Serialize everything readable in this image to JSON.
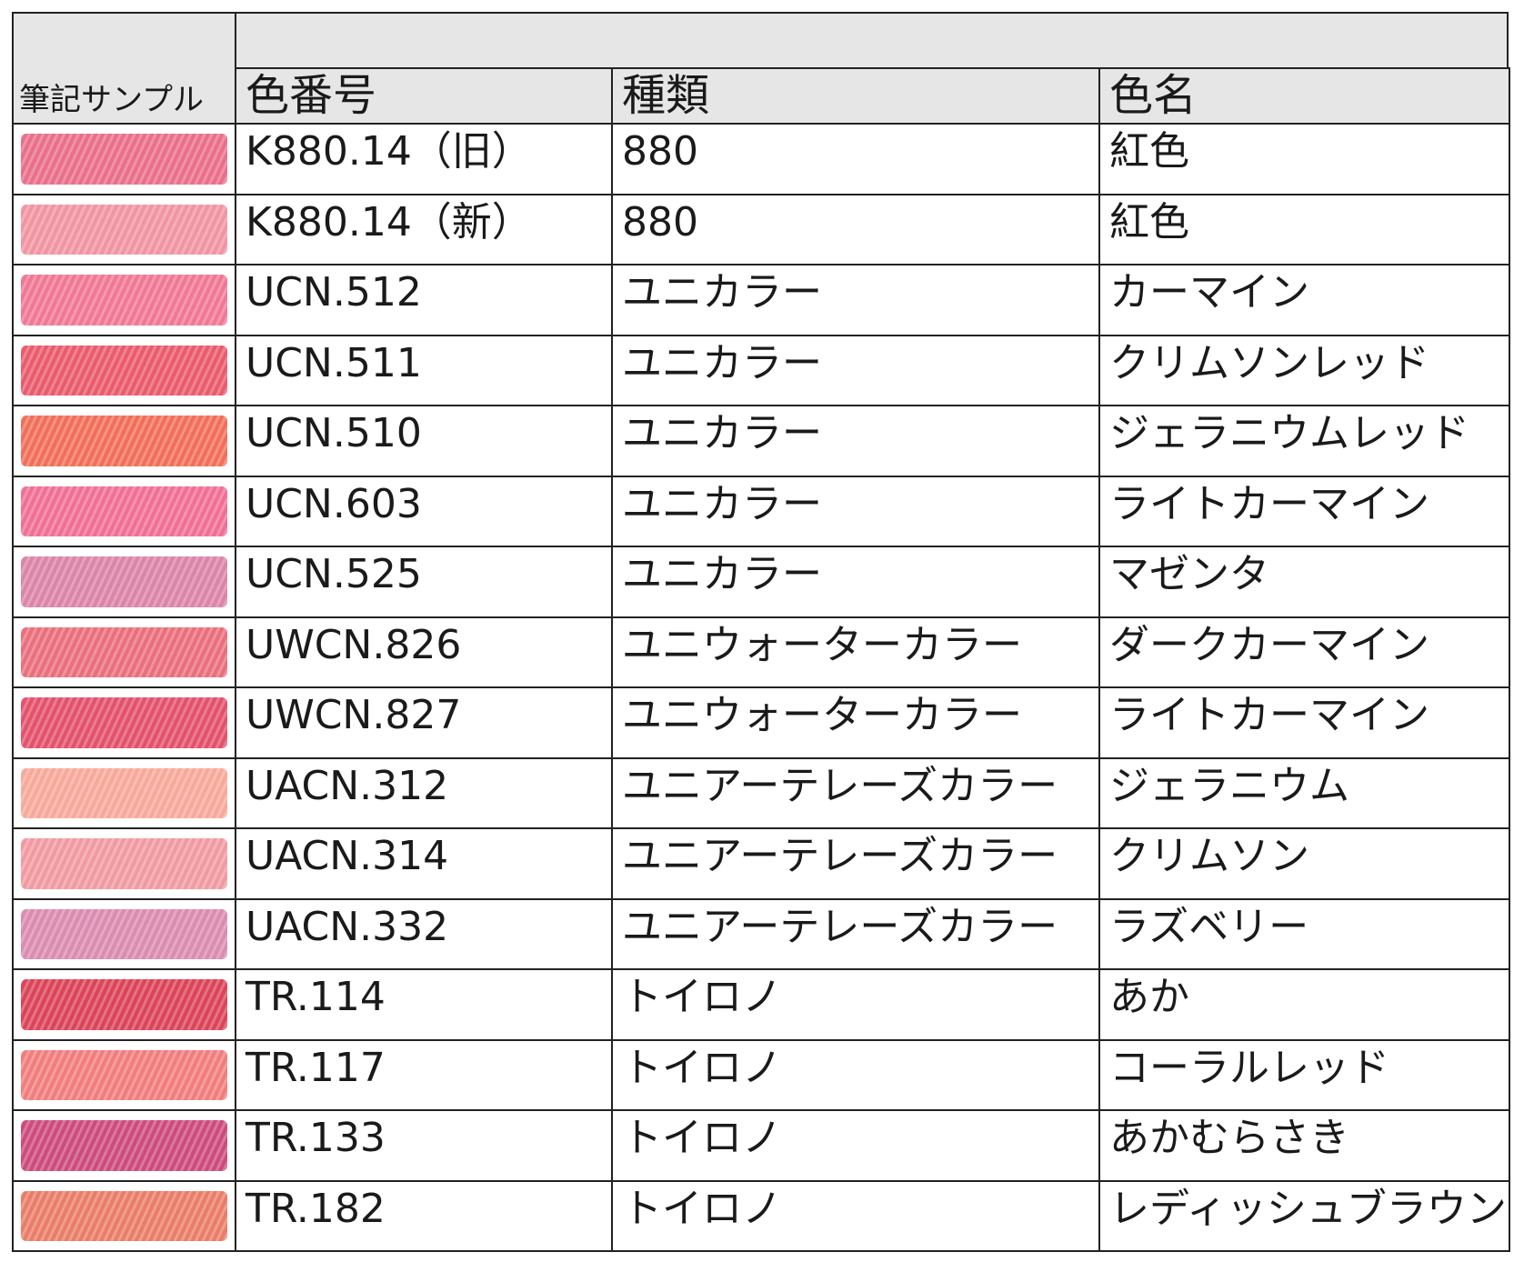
{
  "header": {
    "sample_label": "筆記サンプル",
    "columns": [
      "色番号",
      "種類",
      "色名"
    ]
  },
  "rows": [
    {
      "code": "K880.14（旧）",
      "type": "880",
      "name": "紅色",
      "color": "#e8607e"
    },
    {
      "code": "K880.14（新）",
      "type": "880",
      "name": "紅色",
      "color": "#f08a98"
    },
    {
      "code": "UCN.512",
      "type": "ユニカラー",
      "name": "カーマイン",
      "color": "#f06a8a"
    },
    {
      "code": "UCN.511",
      "type": "ユニカラー",
      "name": "クリムソンレッド",
      "color": "#e84a5e"
    },
    {
      "code": "UCN.510",
      "type": "ユニカラー",
      "name": "ジェラニウムレッド",
      "color": "#f06048"
    },
    {
      "code": "UCN.603",
      "type": "ユニカラー",
      "name": "ライトカーマイン",
      "color": "#f0608a"
    },
    {
      "code": "UCN.525",
      "type": "ユニカラー",
      "name": "マゼンタ",
      "color": "#d878a0"
    },
    {
      "code": "UWCN.826",
      "type": "ユニウォーターカラー",
      "name": "ダークカーマイン",
      "color": "#e86070"
    },
    {
      "code": "UWCN.827",
      "type": "ユニウォーターカラー",
      "name": "ライトカーマイン",
      "color": "#e0405e"
    },
    {
      "code": "UACN.312",
      "type": "ユニアーテレーズカラー",
      "name": "ジェラニウム",
      "color": "#f8a090"
    },
    {
      "code": "UACN.314",
      "type": "ユニアーテレーズカラー",
      "name": "クリムソン",
      "color": "#f09098"
    },
    {
      "code": "UACN.332",
      "type": "ユニアーテレーズカラー",
      "name": "ラズベリー",
      "color": "#d880a8"
    },
    {
      "code": "TR.114",
      "type": "トイロノ",
      "name": "あか",
      "color": "#d83048"
    },
    {
      "code": "TR.117",
      "type": "トイロノ",
      "name": "コーラルレッド",
      "color": "#f07070"
    },
    {
      "code": "TR.133",
      "type": "トイロノ",
      "name": "あかむらさき",
      "color": "#c83870"
    },
    {
      "code": "TR.182",
      "type": "トイロノ",
      "name": "レディッシュブラウン",
      "color": "#e87058"
    }
  ]
}
